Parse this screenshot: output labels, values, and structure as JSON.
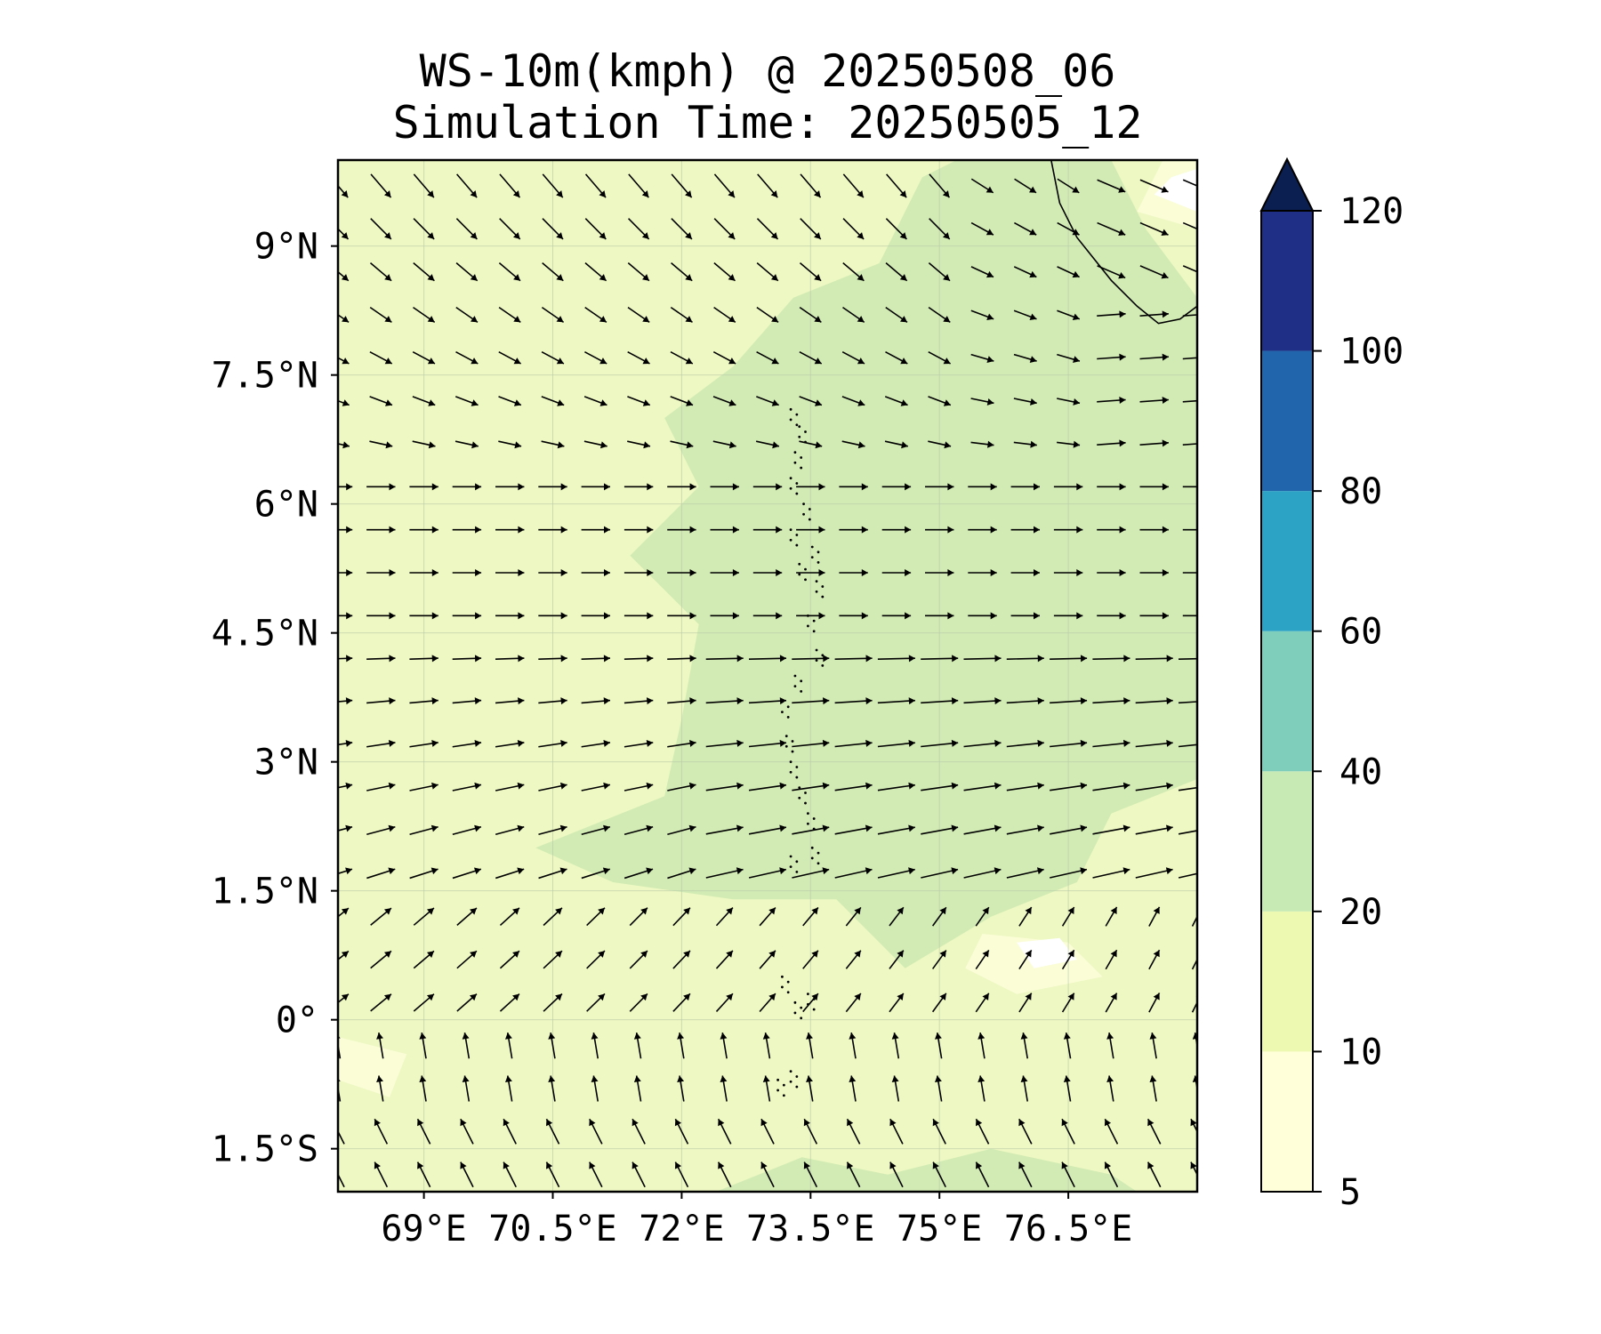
{
  "title": {
    "line1": "WS-10m(kmph) @ 20250508_06",
    "line2": "Simulation Time: 20250505_12"
  },
  "map": {
    "lat_range": [
      -2.0,
      10.0
    ],
    "lon_range": [
      68.0,
      78.0
    ],
    "x_ticks": [
      {
        "value": 69.0,
        "label": "69°E"
      },
      {
        "value": 70.5,
        "label": "70.5°E"
      },
      {
        "value": 72.0,
        "label": "72°E"
      },
      {
        "value": 73.5,
        "label": "73.5°E"
      },
      {
        "value": 75.0,
        "label": "75°E"
      },
      {
        "value": 76.5,
        "label": "76.5°E"
      }
    ],
    "y_ticks": [
      {
        "value": 9.0,
        "label": "9°N"
      },
      {
        "value": 7.5,
        "label": "7.5°N"
      },
      {
        "value": 6.0,
        "label": "6°N"
      },
      {
        "value": 4.5,
        "label": "4.5°N"
      },
      {
        "value": 3.0,
        "label": "3°N"
      },
      {
        "value": 1.5,
        "label": "1.5°N"
      },
      {
        "value": 0.0,
        "label": "0°"
      },
      {
        "value": -1.5,
        "label": "1.5°S"
      }
    ],
    "gridlines": true,
    "background_color": "#eef8c2",
    "fill_regions": [
      {
        "level": "20-40",
        "color": "#d2ebb4",
        "polygon": [
          [
            75.2,
            10.0
          ],
          [
            77.0,
            10.0
          ],
          [
            77.4,
            9.2
          ],
          [
            78.0,
            8.4
          ],
          [
            78.0,
            2.8
          ],
          [
            77.0,
            2.4
          ],
          [
            76.6,
            1.6
          ],
          [
            75.6,
            1.2
          ],
          [
            74.6,
            0.6
          ],
          [
            73.8,
            1.4
          ],
          [
            72.6,
            1.4
          ],
          [
            71.2,
            1.6
          ],
          [
            70.3,
            2.0
          ],
          [
            71.8,
            2.6
          ],
          [
            72.0,
            3.5
          ],
          [
            72.2,
            4.6
          ],
          [
            71.4,
            5.4
          ],
          [
            72.2,
            6.2
          ],
          [
            71.8,
            7.0
          ],
          [
            72.6,
            7.6
          ],
          [
            73.3,
            8.4
          ],
          [
            74.3,
            8.8
          ],
          [
            74.8,
            9.8
          ]
        ]
      },
      {
        "level": "20-40",
        "color": "#d2ebb4",
        "polygon": [
          [
            72.4,
            -2.0
          ],
          [
            73.4,
            -1.6
          ],
          [
            74.4,
            -1.8
          ],
          [
            75.6,
            -1.5
          ],
          [
            77.0,
            -1.8
          ],
          [
            77.3,
            -2.0
          ]
        ]
      },
      {
        "level": "20-40",
        "color": "#d2ebb4",
        "polygon": [
          [
            77.6,
            9.8
          ],
          [
            78.0,
            9.6
          ],
          [
            78.0,
            10.0
          ],
          [
            77.7,
            10.0
          ]
        ]
      },
      {
        "level": "5-10",
        "color": "#fafdd6",
        "polygon": [
          [
            68.0,
            -0.2
          ],
          [
            68.8,
            -0.4
          ],
          [
            68.6,
            -0.9
          ],
          [
            68.0,
            -0.7
          ]
        ]
      },
      {
        "level": "5-10",
        "color": "#fafdd6",
        "polygon": [
          [
            75.5,
            1.0
          ],
          [
            76.5,
            0.9
          ],
          [
            76.9,
            0.5
          ],
          [
            75.9,
            0.3
          ],
          [
            75.3,
            0.6
          ]
        ]
      },
      {
        "level": "5-10",
        "color": "#fafdd6",
        "polygon": [
          [
            77.3,
            9.4
          ],
          [
            78.0,
            9.2
          ],
          [
            78.0,
            10.0
          ],
          [
            77.6,
            10.0
          ]
        ]
      },
      {
        "level": "<5",
        "color": "#ffffff",
        "polygon": [
          [
            75.9,
            0.9
          ],
          [
            76.4,
            0.95
          ],
          [
            76.6,
            0.7
          ],
          [
            76.1,
            0.6
          ]
        ]
      },
      {
        "level": "<5",
        "color": "#ffffff",
        "polygon": [
          [
            77.5,
            9.6
          ],
          [
            78.0,
            9.4
          ],
          [
            78.0,
            9.9
          ],
          [
            77.7,
            9.8
          ]
        ]
      }
    ],
    "coastline": [
      [
        76.3,
        10.0
      ],
      [
        76.4,
        9.5
      ],
      [
        76.6,
        9.1
      ],
      [
        77.0,
        8.6
      ],
      [
        77.3,
        8.3
      ],
      [
        77.55,
        8.1
      ],
      [
        77.8,
        8.15
      ],
      [
        78.0,
        8.3
      ]
    ],
    "islands_note": "",
    "wind_vectors_kmph": {
      "lons": [
        68.0,
        68.5,
        69.0,
        69.5,
        70.0,
        70.5,
        71.0,
        71.5,
        72.0,
        72.5,
        73.0,
        73.5,
        74.0,
        74.5,
        75.0,
        75.5,
        76.0,
        76.5,
        77.0,
        77.5,
        78.0
      ],
      "lats": [
        9.7,
        9.2,
        8.7,
        8.2,
        7.7,
        7.2,
        6.7,
        6.2,
        5.7,
        5.2,
        4.7,
        4.2,
        3.7,
        3.2,
        2.7,
        2.2,
        1.7,
        1.2,
        0.7,
        0.2,
        -0.3,
        -0.8,
        -1.3,
        -1.8
      ]
    }
  },
  "colorbar": {
    "levels": [
      5,
      10,
      20,
      40,
      60,
      80,
      100,
      120
    ],
    "labels": [
      "5",
      "10",
      "20",
      "40",
      "60",
      "80",
      "100",
      "120"
    ],
    "colors": [
      "#ffffd9",
      "#edf8b1",
      "#c7e9b4",
      "#7fcdbb",
      "#2ca3c5",
      "#2166ac",
      "#1f2f86"
    ],
    "extend_color": "#0b1f50",
    "extend": "max"
  }
}
